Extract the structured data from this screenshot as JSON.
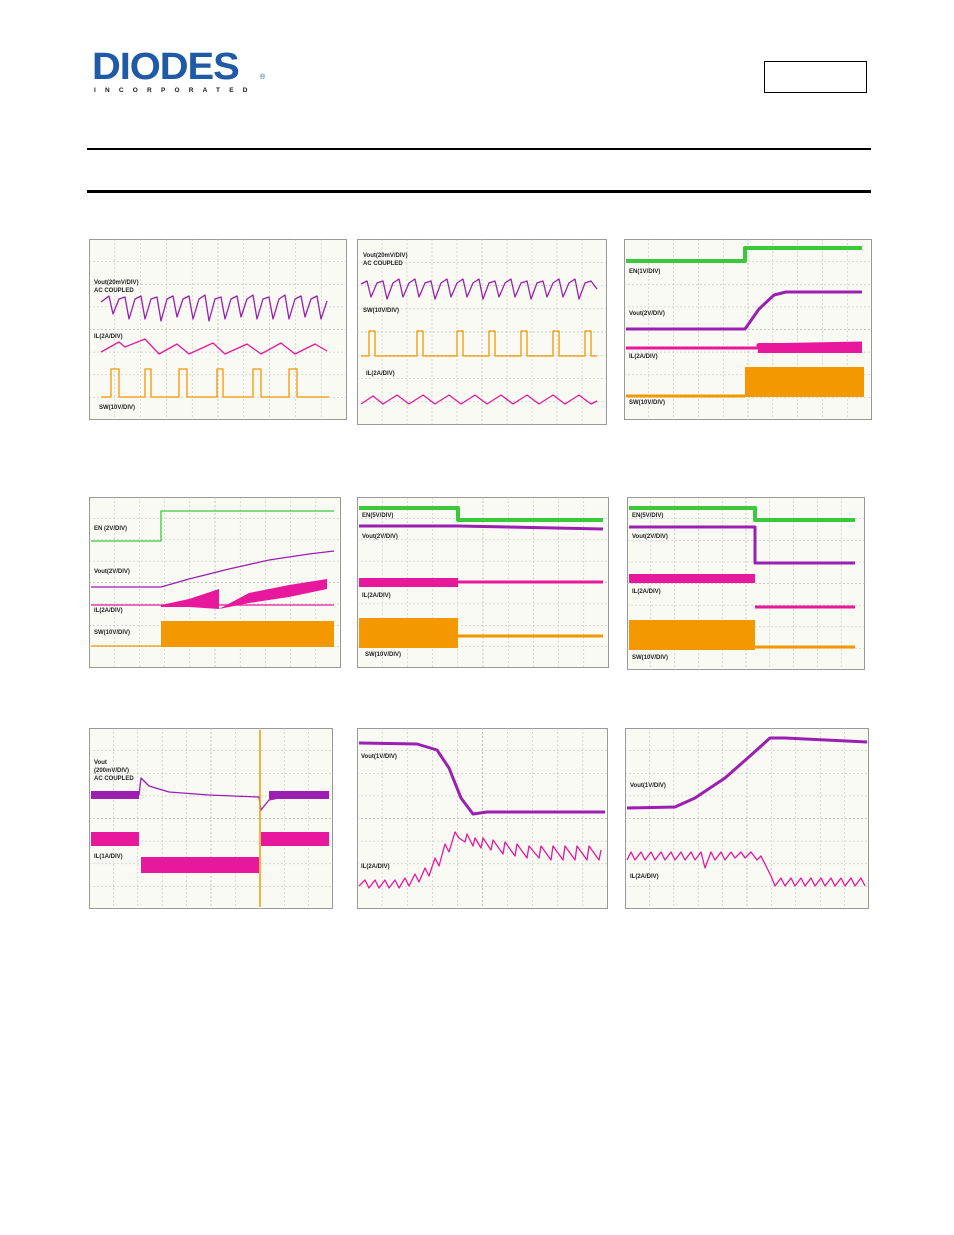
{
  "header": {
    "logo_text": "DIODES",
    "logo_subtext": "INCORPORATED",
    "logo_mark": "®",
    "colors": {
      "brand": "#1f5aa6",
      "rule": "#000000"
    }
  },
  "trace_colors": {
    "vout": "#9b1fb0",
    "il": "#e8189c",
    "sw": "#f39800",
    "en": "#3cc83c",
    "grid": "#b8b8b8"
  },
  "scopes": [
    {
      "labels": [
        "Vout(20mV/DIV)",
        "AC COUPLED",
        "IL(2A/DIV)",
        "SW(10V/DIV)"
      ]
    },
    {
      "labels": [
        "Vout(20mV/DIV)",
        "AC COUPLED",
        "SW(10V/DIV)",
        "IL(2A/DIV)"
      ]
    },
    {
      "labels": [
        "EN(1V/DIV)",
        "Vout(2V/DIV)",
        "IL(2A/DIV)",
        "SW(10V/DIV)"
      ]
    },
    {
      "labels": [
        "EN (2V/DIV)",
        "Vout(2V/DIV)",
        "IL(2A/DIV)",
        "SW(10V/DIV)"
      ]
    },
    {
      "labels": [
        "EN(5V/DIV)",
        "Vout(2V/DIV)",
        "IL(2A/DIV)",
        "SW(10V/DIV)"
      ]
    },
    {
      "labels": [
        "EN(5V/DIV)",
        "Vout(2V/DIV)",
        "IL(2A/DIV)",
        "SW(10V/DIV)"
      ]
    },
    {
      "labels": [
        "Vout",
        "(200mV/DIV)",
        "AC COUPLED",
        "IL(1A/DIV)"
      ]
    },
    {
      "labels": [
        "Vout(1V/DIV)",
        "IL(2A/DIV)"
      ]
    },
    {
      "labels": [
        "Vout(1V/DIV)",
        "IL(2A/DIV)"
      ]
    }
  ]
}
